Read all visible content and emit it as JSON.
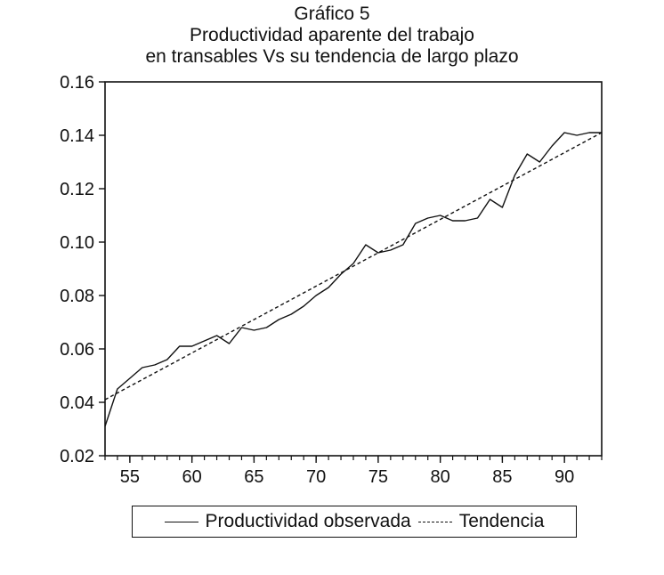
{
  "chart_data": {
    "type": "line",
    "title": "Gráfico 5",
    "subtitle_lines": [
      "Productividad aparente del trabajo",
      "en transables Vs su tendencia de largo plazo"
    ],
    "xlabel": "",
    "ylabel": "",
    "xlim": [
      53,
      93
    ],
    "ylim": [
      0.02,
      0.16
    ],
    "x_ticks": [
      55,
      60,
      65,
      70,
      75,
      80,
      85,
      90
    ],
    "x_tick_labels": [
      "55",
      "60",
      "65",
      "70",
      "75",
      "80",
      "85",
      "90"
    ],
    "y_ticks": [
      0.02,
      0.04,
      0.06,
      0.08,
      0.1,
      0.12,
      0.14,
      0.16
    ],
    "y_tick_labels": [
      "0.02",
      "0.04",
      "0.06",
      "0.08",
      "0.10",
      "0.12",
      "0.14",
      "0.16"
    ],
    "grid": false,
    "legend_position": "bottom",
    "x": [
      53,
      54,
      55,
      56,
      57,
      58,
      59,
      60,
      61,
      62,
      63,
      64,
      65,
      66,
      67,
      68,
      69,
      70,
      71,
      72,
      73,
      74,
      75,
      76,
      77,
      78,
      79,
      80,
      81,
      82,
      83,
      84,
      85,
      86,
      87,
      88,
      89,
      90,
      91,
      92,
      93
    ],
    "series": [
      {
        "name": "Productividad observada",
        "style": "solid",
        "values": [
          0.031,
          0.045,
          0.049,
          0.053,
          0.054,
          0.056,
          0.061,
          0.061,
          0.063,
          0.065,
          0.062,
          0.068,
          0.067,
          0.068,
          0.071,
          0.073,
          0.076,
          0.08,
          0.083,
          0.088,
          0.092,
          0.099,
          0.096,
          0.097,
          0.099,
          0.107,
          0.109,
          0.11,
          0.108,
          0.108,
          0.109,
          0.116,
          0.113,
          0.125,
          0.133,
          0.13,
          0.136,
          0.141,
          0.14,
          0.141,
          0.141
        ]
      },
      {
        "name": "Tendencia",
        "style": "dashed",
        "values": [
          0.041,
          0.0435,
          0.046,
          0.0485,
          0.051,
          0.0535,
          0.056,
          0.0585,
          0.061,
          0.0635,
          0.066,
          0.0685,
          0.071,
          0.0735,
          0.076,
          0.0785,
          0.081,
          0.0835,
          0.086,
          0.0885,
          0.091,
          0.0935,
          0.096,
          0.0985,
          0.101,
          0.1035,
          0.106,
          0.1085,
          0.111,
          0.1135,
          0.116,
          0.1185,
          0.121,
          0.1235,
          0.126,
          0.1285,
          0.131,
          0.1335,
          0.136,
          0.1385,
          0.141
        ]
      }
    ]
  }
}
